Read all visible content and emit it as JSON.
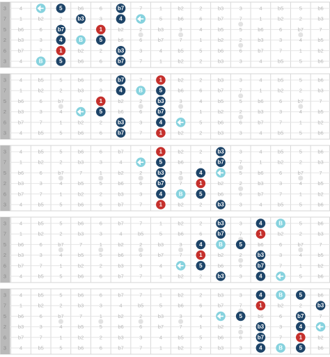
{
  "fretboard": [
    [
      "3",
      "4",
      "b5",
      "5",
      "b6",
      "6",
      "b7",
      "7",
      "1",
      "b2",
      "2",
      "b3",
      "3",
      "4",
      "b5",
      "5",
      "b6"
    ],
    [
      "7",
      "1",
      "b2",
      "2",
      "b3",
      "3",
      "4",
      "b5",
      "5",
      "b6",
      "6",
      "b7",
      "7",
      "1",
      "b2",
      "2",
      "b3"
    ],
    [
      "5",
      "b6",
      "6",
      "b7",
      "7",
      "1",
      "b2",
      "2",
      "b3",
      "3",
      "4",
      "b5",
      "5",
      "b6",
      "6",
      "b7",
      "7"
    ],
    [
      "2",
      "b3",
      "3",
      "4",
      "b5",
      "5",
      "b6",
      "6",
      "b7",
      "7",
      "1",
      "b2",
      "2",
      "b3",
      "3",
      "4",
      "b5"
    ],
    [
      "6",
      "b7",
      "7",
      "1",
      "b2",
      "2",
      "b3",
      "3",
      "4",
      "b5",
      "5",
      "b6",
      "6",
      "b7",
      "7",
      "1",
      "b2"
    ],
    [
      "3",
      "4",
      "b5",
      "5",
      "b6",
      "6",
      "b7",
      "7",
      "1",
      "b2",
      "2",
      "b3",
      "3",
      "4",
      "b5",
      "5",
      "b6"
    ]
  ],
  "colors": {
    "degree": "#1d4468",
    "root": "#c5302c",
    "blue-note": "#86d2de",
    "bend": "#86d2de"
  },
  "diagrams": [
    {
      "markers": [
        {
          "string": 0,
          "fret": 2,
          "kind": "bend"
        },
        {
          "string": 0,
          "fret": 3,
          "label": "5",
          "kind": "degree"
        },
        {
          "string": 0,
          "fret": 6,
          "label": "b7",
          "kind": "degree"
        },
        {
          "string": 1,
          "fret": 4,
          "label": "b3",
          "kind": "degree"
        },
        {
          "string": 1,
          "fret": 6,
          "label": "4",
          "kind": "degree"
        },
        {
          "string": 1,
          "fret": 7,
          "kind": "bend"
        },
        {
          "string": 2,
          "fret": 3,
          "label": "b7",
          "kind": "degree"
        },
        {
          "string": 2,
          "fret": 5,
          "label": "1",
          "kind": "root"
        },
        {
          "string": 3,
          "fret": 3,
          "label": "4",
          "kind": "degree"
        },
        {
          "string": 3,
          "fret": 4,
          "label": "B",
          "kind": "blue-note"
        },
        {
          "string": 3,
          "fret": 5,
          "label": "5",
          "kind": "degree"
        },
        {
          "string": 4,
          "fret": 3,
          "label": "1",
          "kind": "root"
        },
        {
          "string": 4,
          "fret": 6,
          "label": "b3",
          "kind": "degree"
        },
        {
          "string": 5,
          "fret": 2,
          "label": "B",
          "kind": "blue-note"
        },
        {
          "string": 5,
          "fret": 3,
          "label": "5",
          "kind": "degree"
        },
        {
          "string": 5,
          "fret": 6,
          "label": "b7",
          "kind": "degree"
        }
      ]
    },
    {
      "markers": [
        {
          "string": 0,
          "fret": 6,
          "label": "b7",
          "kind": "degree"
        },
        {
          "string": 0,
          "fret": 8,
          "label": "1",
          "kind": "root"
        },
        {
          "string": 1,
          "fret": 6,
          "label": "4",
          "kind": "degree"
        },
        {
          "string": 1,
          "fret": 7,
          "label": "B",
          "kind": "blue-note"
        },
        {
          "string": 1,
          "fret": 8,
          "label": "5",
          "kind": "degree"
        },
        {
          "string": 2,
          "fret": 5,
          "label": "1",
          "kind": "root"
        },
        {
          "string": 2,
          "fret": 8,
          "label": "b3",
          "kind": "degree"
        },
        {
          "string": 3,
          "fret": 4,
          "kind": "bend"
        },
        {
          "string": 3,
          "fret": 5,
          "label": "5",
          "kind": "degree"
        },
        {
          "string": 3,
          "fret": 8,
          "label": "b7",
          "kind": "degree"
        },
        {
          "string": 4,
          "fret": 6,
          "label": "b3",
          "kind": "degree"
        },
        {
          "string": 4,
          "fret": 8,
          "label": "4",
          "kind": "degree"
        },
        {
          "string": 4,
          "fret": 9,
          "kind": "bend"
        },
        {
          "string": 5,
          "fret": 6,
          "label": "b7",
          "kind": "degree"
        },
        {
          "string": 5,
          "fret": 8,
          "label": "1",
          "kind": "root"
        }
      ]
    },
    {
      "markers": [
        {
          "string": 0,
          "fret": 8,
          "label": "1",
          "kind": "root"
        },
        {
          "string": 0,
          "fret": 11,
          "label": "b3",
          "kind": "degree"
        },
        {
          "string": 1,
          "fret": 7,
          "kind": "bend"
        },
        {
          "string": 1,
          "fret": 8,
          "label": "5",
          "kind": "degree"
        },
        {
          "string": 1,
          "fret": 11,
          "label": "b7",
          "kind": "degree"
        },
        {
          "string": 2,
          "fret": 8,
          "label": "b3",
          "kind": "degree"
        },
        {
          "string": 2,
          "fret": 10,
          "label": "4",
          "kind": "degree"
        },
        {
          "string": 2,
          "fret": 11,
          "kind": "bend"
        },
        {
          "string": 3,
          "fret": 8,
          "label": "b7",
          "kind": "degree"
        },
        {
          "string": 3,
          "fret": 10,
          "label": "1",
          "kind": "root"
        },
        {
          "string": 4,
          "fret": 8,
          "label": "4",
          "kind": "degree"
        },
        {
          "string": 4,
          "fret": 9,
          "label": "B",
          "kind": "blue-note"
        },
        {
          "string": 4,
          "fret": 10,
          "label": "5",
          "kind": "degree"
        },
        {
          "string": 5,
          "fret": 8,
          "label": "1",
          "kind": "root"
        },
        {
          "string": 5,
          "fret": 11,
          "label": "b3",
          "kind": "degree"
        }
      ]
    },
    {
      "markers": [
        {
          "string": 0,
          "fret": 11,
          "label": "b3",
          "kind": "degree"
        },
        {
          "string": 0,
          "fret": 13,
          "label": "4",
          "kind": "degree"
        },
        {
          "string": 0,
          "fret": 14,
          "label": "B",
          "kind": "blue-note"
        },
        {
          "string": 1,
          "fret": 11,
          "label": "b7",
          "kind": "degree"
        },
        {
          "string": 1,
          "fret": 13,
          "label": "1",
          "kind": "root"
        },
        {
          "string": 2,
          "fret": 10,
          "label": "4",
          "kind": "degree"
        },
        {
          "string": 2,
          "fret": 11,
          "label": "B",
          "kind": "blue-note"
        },
        {
          "string": 2,
          "fret": 12,
          "label": "5",
          "kind": "degree"
        },
        {
          "string": 3,
          "fret": 10,
          "label": "1",
          "kind": "root"
        },
        {
          "string": 3,
          "fret": 13,
          "label": "b3",
          "kind": "degree"
        },
        {
          "string": 4,
          "fret": 9,
          "kind": "bend"
        },
        {
          "string": 4,
          "fret": 10,
          "label": "5",
          "kind": "degree"
        },
        {
          "string": 4,
          "fret": 13,
          "label": "b7",
          "kind": "degree"
        },
        {
          "string": 5,
          "fret": 11,
          "label": "b3",
          "kind": "degree"
        },
        {
          "string": 5,
          "fret": 13,
          "label": "4",
          "kind": "degree"
        },
        {
          "string": 5,
          "fret": 14,
          "kind": "bend"
        }
      ]
    },
    {
      "markers": [
        {
          "string": 0,
          "fret": 13,
          "label": "4",
          "kind": "degree"
        },
        {
          "string": 0,
          "fret": 14,
          "label": "B",
          "kind": "blue-note"
        },
        {
          "string": 0,
          "fret": 15,
          "label": "5",
          "kind": "degree"
        },
        {
          "string": 1,
          "fret": 13,
          "label": "1",
          "kind": "root"
        },
        {
          "string": 1,
          "fret": 16,
          "label": "b3",
          "kind": "degree"
        },
        {
          "string": 2,
          "fret": 11,
          "kind": "bend"
        },
        {
          "string": 2,
          "fret": 12,
          "label": "5",
          "kind": "degree"
        },
        {
          "string": 2,
          "fret": 15,
          "label": "b7",
          "kind": "degree"
        },
        {
          "string": 3,
          "fret": 13,
          "label": "b3",
          "kind": "degree"
        },
        {
          "string": 3,
          "fret": 15,
          "label": "4",
          "kind": "degree"
        },
        {
          "string": 3,
          "fret": 16,
          "kind": "bend"
        },
        {
          "string": 4,
          "fret": 13,
          "label": "b7",
          "kind": "degree"
        },
        {
          "string": 4,
          "fret": 15,
          "label": "1",
          "kind": "root"
        },
        {
          "string": 5,
          "fret": 13,
          "label": "4",
          "kind": "degree"
        },
        {
          "string": 5,
          "fret": 14,
          "label": "B",
          "kind": "blue-note"
        },
        {
          "string": 5,
          "fret": 15,
          "label": "5",
          "kind": "degree"
        }
      ]
    }
  ]
}
